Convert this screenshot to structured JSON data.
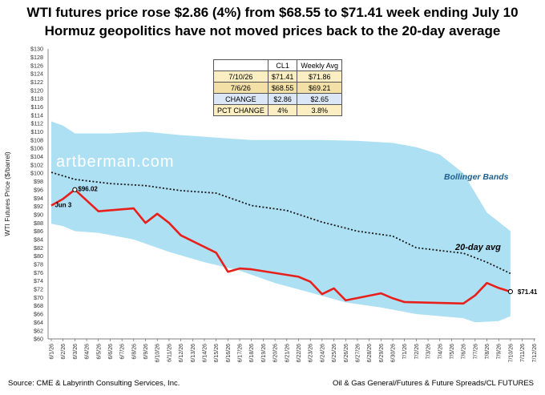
{
  "header": {
    "title": "WTI futures price rose $2.86 (4%) from $68.55 to $71.41 week ending July 10",
    "subtitle": "Hormuz geopolitics have not moved prices back to the 20-day average"
  },
  "watermark": "artberman.com",
  "footer": {
    "source": "Source: CME & Labyrinth Consulting Services, Inc.",
    "note": "Oil & Gas General/Futures & Future Spreads/CL FUTURES"
  },
  "table": {
    "columns": [
      "",
      "CL1",
      "Weekly Avg"
    ],
    "rows": [
      [
        "7/10/26",
        "$71.41",
        "$71.86"
      ],
      [
        "7/6/26",
        "$68.55",
        "$69.21"
      ],
      [
        "CHANGE",
        "$2.86",
        "$2.65"
      ],
      [
        "PCT CHANGE",
        "4%",
        "3.8%"
      ]
    ]
  },
  "chart_data": {
    "type": "line",
    "ylabel": "WTI  Futures Price ($/barrel)",
    "xlabel": "",
    "ylim": [
      60,
      130
    ],
    "ytick_step": 2,
    "y_prefix": "$",
    "x_labels": [
      "6/1/26",
      "6/2/26",
      "6/3/26",
      "6/4/26",
      "6/5/26",
      "6/6/26",
      "6/7/26",
      "6/8/26",
      "6/9/26",
      "6/10/26",
      "6/11/26",
      "6/12/26",
      "6/13/26",
      "6/14/26",
      "6/15/26",
      "6/16/26",
      "6/17/26",
      "6/18/26",
      "6/19/26",
      "6/20/26",
      "6/21/26",
      "6/22/26",
      "6/23/26",
      "6/24/26",
      "6/25/26",
      "6/26/26",
      "6/27/26",
      "6/28/26",
      "6/29/26",
      "6/30/26",
      "7/1/26",
      "7/2/26",
      "7/3/26",
      "7/4/26",
      "7/5/26",
      "7/6/26",
      "7/7/26",
      "7/8/26",
      "7/9/26",
      "7/10/26",
      "7/11/26",
      "7/12/26"
    ],
    "price_series": {
      "color": "#e8201c",
      "points": [
        [
          "6/1/26",
          92.2
        ],
        [
          "6/2/26",
          93.8
        ],
        [
          "6/3/26",
          96.02
        ],
        [
          "6/5/26",
          90.8
        ],
        [
          "6/8/26",
          91.5
        ],
        [
          "6/9/26",
          88.0
        ],
        [
          "6/10/26",
          90.2
        ],
        [
          "6/11/26",
          88.0
        ],
        [
          "6/12/26",
          85.0
        ],
        [
          "6/15/26",
          80.8
        ],
        [
          "6/16/26",
          76.2
        ],
        [
          "6/17/26",
          77.0
        ],
        [
          "6/18/26",
          76.8
        ],
        [
          "6/22/26",
          75.0
        ],
        [
          "6/23/26",
          73.8
        ],
        [
          "6/24/26",
          70.8
        ],
        [
          "6/25/26",
          72.2
        ],
        [
          "6/26/26",
          69.3
        ],
        [
          "6/29/26",
          71.0
        ],
        [
          "6/30/26",
          69.8
        ],
        [
          "7/1/26",
          68.9
        ],
        [
          "7/6/26",
          68.55
        ],
        [
          "7/7/26",
          70.5
        ],
        [
          "7/8/26",
          73.5
        ],
        [
          "7/9/26",
          72.3
        ],
        [
          "7/10/26",
          71.41
        ]
      ]
    },
    "avg_series": {
      "label": "20-day avg",
      "color": "#1a1a1a",
      "points": [
        [
          "6/1/26",
          100.2
        ],
        [
          "6/3/26",
          98.5
        ],
        [
          "6/6/26",
          97.5
        ],
        [
          "6/9/26",
          97.0
        ],
        [
          "6/12/26",
          95.8
        ],
        [
          "6/15/26",
          95.2
        ],
        [
          "6/18/26",
          92.2
        ],
        [
          "6/21/26",
          91.0
        ],
        [
          "6/24/26",
          88.2
        ],
        [
          "6/27/26",
          86.0
        ],
        [
          "6/30/26",
          84.8
        ],
        [
          "7/2/26",
          82.0
        ],
        [
          "7/5/26",
          81.0
        ],
        [
          "7/6/26",
          80.7
        ],
        [
          "7/8/26",
          78.5
        ],
        [
          "7/10/26",
          75.8
        ]
      ]
    },
    "bands": {
      "label": "Bollinger Bands",
      "color": "#aee0f4",
      "upper": [
        [
          "6/1/26",
          112.5
        ],
        [
          "6/2/26",
          111.5
        ],
        [
          "6/3/26",
          109.6
        ],
        [
          "6/6/26",
          109.6
        ],
        [
          "6/9/26",
          110.0
        ],
        [
          "6/12/26",
          109.2
        ],
        [
          "6/15/26",
          108.6
        ],
        [
          "6/18/26",
          108.0
        ],
        [
          "6/21/26",
          108.0
        ],
        [
          "6/24/26",
          108.0
        ],
        [
          "6/27/26",
          107.8
        ],
        [
          "6/30/26",
          107.3
        ],
        [
          "7/2/26",
          106.3
        ],
        [
          "7/4/26",
          104.5
        ],
        [
          "7/6/26",
          100.0
        ],
        [
          "7/8/26",
          90.5
        ],
        [
          "7/10/26",
          86.0
        ]
      ],
      "lower": [
        [
          "6/1/26",
          87.8
        ],
        [
          "6/2/26",
          87.2
        ],
        [
          "6/3/26",
          86.0
        ],
        [
          "6/5/26",
          85.6
        ],
        [
          "6/8/26",
          84.0
        ],
        [
          "6/11/26",
          81.0
        ],
        [
          "6/14/26",
          78.5
        ],
        [
          "6/17/26",
          76.5
        ],
        [
          "6/20/26",
          73.5
        ],
        [
          "6/23/26",
          71.2
        ],
        [
          "6/26/26",
          68.8
        ],
        [
          "6/29/26",
          67.6
        ],
        [
          "7/2/26",
          66.0
        ],
        [
          "7/6/26",
          65.0
        ],
        [
          "7/7/26",
          64.0
        ],
        [
          "7/9/26",
          64.3
        ],
        [
          "7/10/26",
          65.5
        ]
      ]
    },
    "annotations": [
      {
        "text": "$96.02",
        "x": "6/3/26",
        "y": 96.02,
        "anchor": "right"
      },
      {
        "text": "Jun 3",
        "x": "6/3/26",
        "y": 96.02,
        "anchor": "below-left"
      },
      {
        "text": "$71.41",
        "x": "7/10/26",
        "y": 71.41,
        "anchor": "right"
      }
    ],
    "grid": false,
    "legend": "none"
  }
}
